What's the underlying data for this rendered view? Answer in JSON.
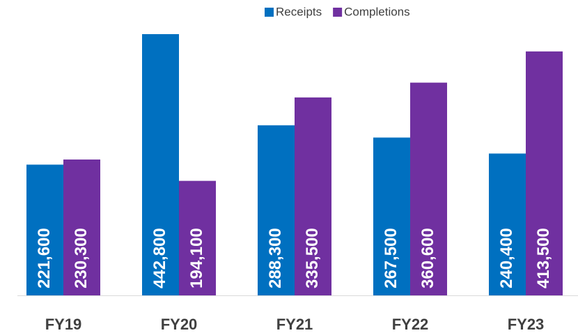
{
  "chart_data": {
    "type": "bar",
    "categories": [
      "FY19",
      "FY20",
      "FY21",
      "FY22",
      "FY23"
    ],
    "series": [
      {
        "name": "Receipts",
        "color": "#0070c0",
        "values": [
          221600,
          442800,
          288300,
          267500,
          240400
        ],
        "value_labels": [
          "221,600",
          "442,800",
          "288,300",
          "267,500",
          "240,400"
        ]
      },
      {
        "name": "Completions",
        "color": "#7030a0",
        "values": [
          230300,
          194100,
          335500,
          360600,
          413500
        ],
        "value_labels": [
          "230,300",
          "194,100",
          "335,500",
          "360,600",
          "413,500"
        ]
      }
    ],
    "legend": "top"
  }
}
